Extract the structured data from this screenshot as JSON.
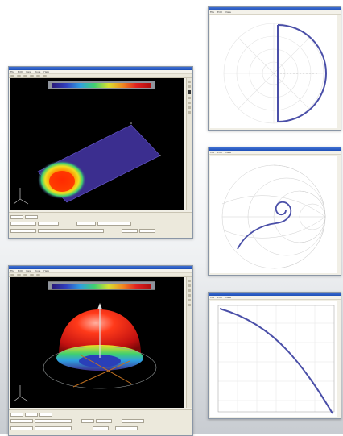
{
  "windows3d": [
    {
      "name": "rectangular-patch-view",
      "menu": [
        "File",
        "Edit",
        "View",
        "Tools",
        "Help"
      ]
    },
    {
      "name": "radiation-pattern-view",
      "menu": [
        "File",
        "Edit",
        "View",
        "Tools",
        "Help"
      ]
    }
  ],
  "plots": [
    {
      "name": "polar-plot-window",
      "menu": [
        "File",
        "Edit",
        "View"
      ]
    },
    {
      "name": "smith-chart-window",
      "menu": [
        "File",
        "Edit",
        "View"
      ]
    },
    {
      "name": "line-plot-window",
      "menu": [
        "File",
        "Edit",
        "View"
      ]
    }
  ],
  "colors": {
    "background": "#ffffff",
    "window_frame": "#8a96a6",
    "title_blue": "#1e4fb8",
    "plot_curve": "#4a4fa8",
    "patch_substrate": "#3b2e8f"
  }
}
